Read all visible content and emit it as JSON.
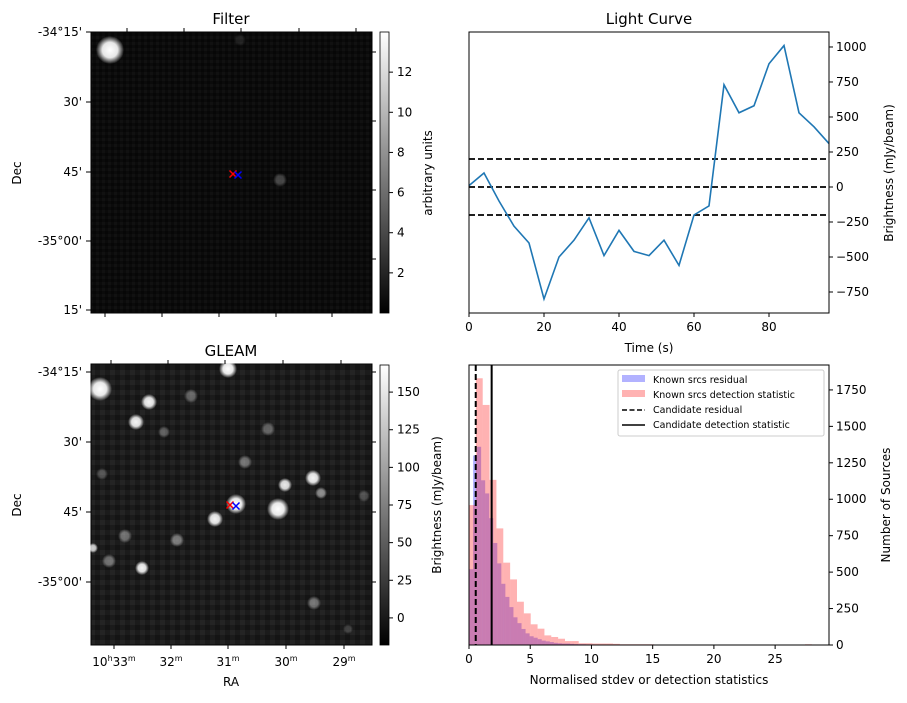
{
  "chart_data": [
    {
      "type": "heatmap",
      "title": "Filter",
      "xlabel": "",
      "ylabel": "Dec",
      "ytick_labels": [
        "-34°15'",
        "30'",
        "45'",
        "-35°00'",
        "15'"
      ],
      "colorbar": {
        "label": "arbitrary units",
        "range": [
          0,
          14
        ],
        "ticks": [
          2,
          4,
          6,
          8,
          10,
          12
        ],
        "tick_labels": [
          "2",
          "4",
          "6",
          "8",
          "10",
          "12"
        ],
        "colormap": "gray"
      },
      "markers": [
        {
          "color": "#ff0000",
          "symbol": "x"
        },
        {
          "color": "#0000ff",
          "symbol": "x"
        }
      ]
    },
    {
      "type": "line",
      "title": "Light Curve",
      "xlabel": "Time (s)",
      "ylabel": "Brightness (mJy/beam)",
      "xlim": [
        0,
        96
      ],
      "ylim": [
        -900,
        1107
      ],
      "xticks": [
        0,
        20,
        40,
        60,
        80
      ],
      "xtick_labels": [
        "0",
        "20",
        "40",
        "60",
        "80"
      ],
      "yticks": [
        -750,
        -500,
        -250,
        0,
        250,
        500,
        750,
        1000
      ],
      "ytick_labels": [
        "−750",
        "−500",
        "−250",
        "0",
        "250",
        "500",
        "750",
        "1000"
      ],
      "series": [
        {
          "name": "light curve",
          "color": "#1f77b4",
          "x": [
            0,
            4,
            8,
            12,
            16,
            20,
            24,
            28,
            32,
            36,
            40,
            44,
            48,
            52,
            56,
            60,
            64,
            68,
            72,
            76,
            80,
            84,
            88,
            92,
            96
          ],
          "y": [
            10,
            100,
            -100,
            -280,
            -400,
            -800,
            -500,
            -380,
            -220,
            -490,
            -310,
            -460,
            -490,
            -380,
            -560,
            -200,
            -135,
            730,
            530,
            580,
            880,
            1010,
            530,
            430,
            310
          ]
        }
      ],
      "hlines": [
        {
          "y": 200,
          "style": "dashed",
          "color": "#000000"
        },
        {
          "y": 0,
          "style": "dashed",
          "color": "#000000"
        },
        {
          "y": -200,
          "style": "dashed",
          "color": "#000000"
        }
      ]
    },
    {
      "type": "heatmap",
      "title": "GLEAM",
      "xlabel": "RA",
      "ylabel": "Dec",
      "xtick_labels": [
        "10h33m",
        "32m",
        "31m",
        "30m",
        "29m"
      ],
      "xtick_parts": [
        [
          "10",
          "h",
          "33",
          "m"
        ],
        [
          "",
          "",
          "32",
          "m"
        ],
        [
          "",
          "",
          "31",
          "m"
        ],
        [
          "",
          "",
          "30",
          "m"
        ],
        [
          "",
          "",
          "29",
          "m"
        ]
      ],
      "ytick_labels": [
        "-34°15'",
        "30'",
        "45'",
        "-35°00'"
      ],
      "colorbar": {
        "label": "Brightness (mJy/beam)",
        "range": [
          -18,
          168
        ],
        "ticks": [
          0,
          25,
          50,
          75,
          100,
          125,
          150
        ],
        "tick_labels": [
          "0",
          "25",
          "50",
          "75",
          "100",
          "125",
          "150"
        ],
        "colormap": "gray"
      },
      "markers": [
        {
          "color": "#ff0000",
          "symbol": "x"
        },
        {
          "color": "#0000ff",
          "symbol": "x"
        }
      ]
    },
    {
      "type": "bar",
      "title": "",
      "xlabel": "Normalised stdev or detection statistics",
      "ylabel": "Number of Sources",
      "xlim": [
        0,
        29.4
      ],
      "ylim": [
        0,
        1921
      ],
      "xticks": [
        0,
        5,
        10,
        15,
        20,
        25
      ],
      "xtick_labels": [
        "0",
        "5",
        "10",
        "15",
        "20",
        "25"
      ],
      "yticks": [
        0,
        250,
        500,
        750,
        1000,
        1250,
        1500,
        1750
      ],
      "ytick_labels": [
        "0",
        "250",
        "500",
        "750",
        "1000",
        "1250",
        "1500",
        "1750"
      ],
      "legend_position": "top-right",
      "series": [
        {
          "name": "Known srcs residual",
          "color": "#0000ff",
          "alpha": 0.3,
          "bin_start": 0,
          "bin_width": 0.33,
          "values": [
            520,
            1300,
            1360,
            1130,
            1040,
            870,
            700,
            560,
            420,
            330,
            260,
            190,
            150,
            110,
            80,
            60,
            50,
            40,
            30,
            25,
            20,
            15,
            12,
            10,
            10,
            8,
            6,
            5,
            5,
            4,
            4,
            3,
            3,
            2,
            2,
            2,
            2,
            1,
            1,
            1
          ]
        },
        {
          "name": "Known srcs detection statistic",
          "color": "#ff0000",
          "alpha": 0.3,
          "bin_start": 0,
          "bin_width": 0.56,
          "values": [
            960,
            1830,
            1647,
            1133,
            800,
            565,
            450,
            297,
            217,
            142,
            112,
            66,
            55,
            43,
            27,
            27,
            12,
            12,
            10,
            10,
            10,
            8,
            5,
            5,
            5,
            5,
            5,
            0,
            0,
            0,
            0,
            3,
            3,
            3,
            0,
            0,
            0,
            0,
            0,
            0,
            0,
            0,
            0,
            0,
            0,
            0,
            0,
            0,
            0,
            5
          ]
        }
      ],
      "vlines": [
        {
          "name": "Candidate residual",
          "x": 0.55,
          "style": "dashed",
          "color": "#000000"
        },
        {
          "name": "Candidate detection statistic",
          "x": 1.85,
          "style": "solid",
          "color": "#000000"
        }
      ]
    }
  ]
}
